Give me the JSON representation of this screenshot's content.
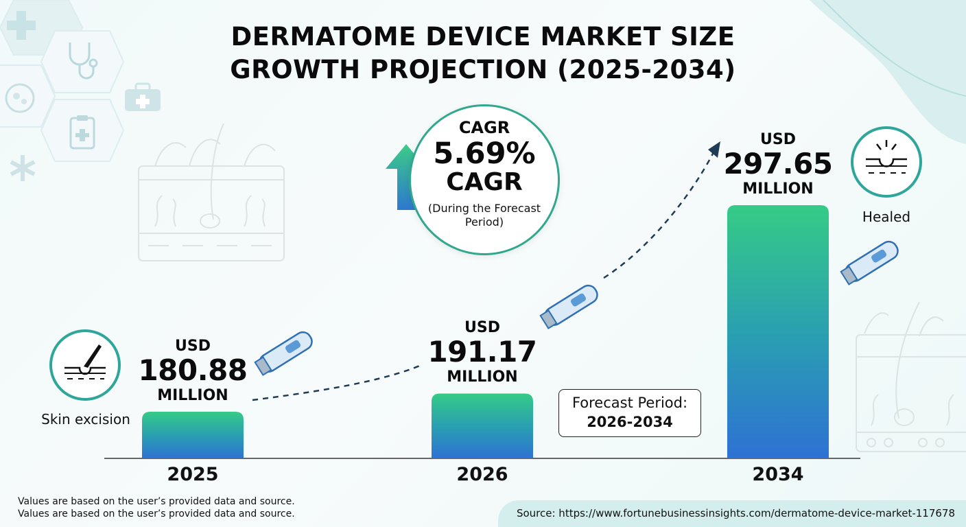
{
  "title": {
    "line1": "DERMATOME DEVICE MARKET SIZE",
    "line2": "GROWTH PROJECTION (2025-2034)"
  },
  "cagr": {
    "heading": "CAGR",
    "value": "5.69%",
    "label": "CAGR",
    "note_line1": "(During the Forecast",
    "note_line2": "Period)"
  },
  "forecast": {
    "label": "Forecast Period:",
    "range": "2026-2034"
  },
  "badges": {
    "start": "Skin excision",
    "end": "Healed"
  },
  "chart_data": {
    "type": "bar",
    "categories": [
      "2025",
      "2026",
      "2034"
    ],
    "values": [
      180.88,
      191.17,
      297.65
    ],
    "unit_prefix": "USD",
    "unit_suffix": "MILLION",
    "value_labels": [
      "180.88",
      "191.17",
      "297.65"
    ],
    "title": "DERMATOME DEVICE MARKET SIZE GROWTH PROJECTION (2025-2034)",
    "xlabel": "",
    "ylabel": "",
    "grid": false,
    "colors": {
      "bar_top": "#34c988",
      "bar_bottom": "#2e74d3",
      "axis": "#555555"
    }
  },
  "footnotes": [
    "Values are based on the user’s provided data and source.",
    "Values are based on the user’s provided data and source."
  ],
  "source": "Source: https://www.fortunebusinessinsights.com/dermatome-device-market-117678",
  "icons": [
    "medical-cross-icon",
    "stethoscope-icon",
    "first-aid-kit-icon",
    "clipboard-icon",
    "medical-symbol-icon",
    "skin-cross-section-icon",
    "dermatome-device-icon",
    "skin-excision-icon",
    "healed-skin-icon",
    "up-arrow-icon"
  ]
}
